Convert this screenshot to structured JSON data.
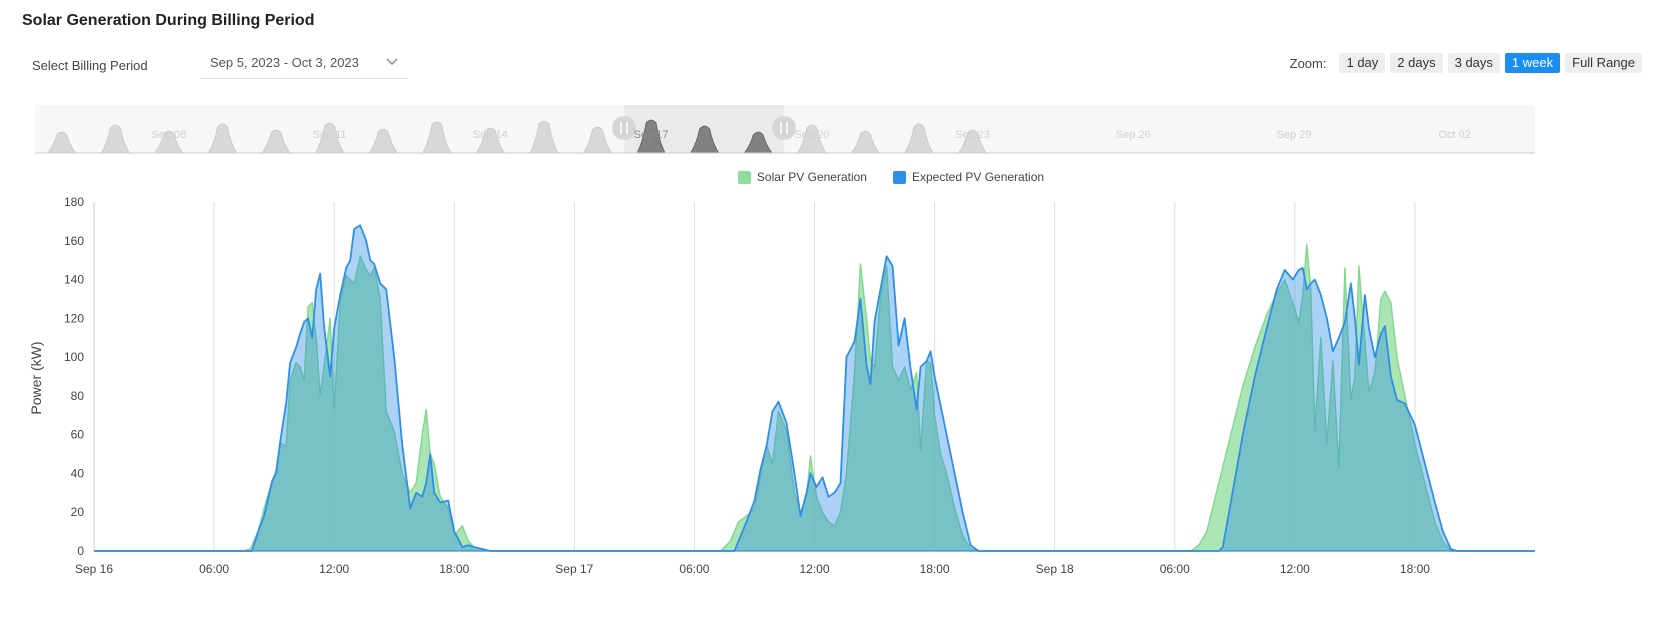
{
  "page": {
    "title": "Solar Generation During Billing Period"
  },
  "billing": {
    "label": "Select Billing Period",
    "selected": "Sep 5, 2023 - Oct 3, 2023"
  },
  "zoom": {
    "label": "Zoom:",
    "options": [
      "1 day",
      "2 days",
      "3 days",
      "1 week",
      "Full Range"
    ],
    "active": "1 week"
  },
  "navigator": {
    "labels": [
      "Sep 08",
      "Sep 11",
      "Sep 14",
      "Sep 17",
      "Sep 20",
      "Sep 23",
      "Sep 26",
      "Sep 29",
      "Oct 02"
    ]
  },
  "colors": {
    "solar": "#8ddc9a",
    "expected": "#2d8fe6",
    "active": "#1a8df2"
  },
  "chart_data": {
    "type": "area",
    "ylabel": "Power (kW)",
    "ylim": [
      0,
      180
    ],
    "yticks": [
      0,
      20,
      40,
      60,
      80,
      100,
      120,
      140,
      160,
      180
    ],
    "xlim": [
      0,
      72
    ],
    "xticks": [
      {
        "h": 0,
        "label": "Sep 16"
      },
      {
        "h": 6,
        "label": "06:00"
      },
      {
        "h": 12,
        "label": "12:00"
      },
      {
        "h": 18,
        "label": "18:00"
      },
      {
        "h": 24,
        "label": "Sep 17"
      },
      {
        "h": 30,
        "label": "06:00"
      },
      {
        "h": 36,
        "label": "12:00"
      },
      {
        "h": 42,
        "label": "18:00"
      },
      {
        "h": 48,
        "label": "Sep 18"
      },
      {
        "h": 54,
        "label": "06:00"
      },
      {
        "h": 60,
        "label": "12:00"
      },
      {
        "h": 66,
        "label": "18:00"
      }
    ],
    "grid": "vertical",
    "legend": "top-center",
    "series": [
      {
        "name": "Solar PV Generation",
        "points": [
          [
            0,
            0
          ],
          [
            7.4,
            0
          ],
          [
            7.8,
            1
          ],
          [
            8.2,
            10
          ],
          [
            8.5,
            22
          ],
          [
            8.9,
            36
          ],
          [
            9.1,
            42
          ],
          [
            9.3,
            56
          ],
          [
            9.6,
            54
          ],
          [
            9.8,
            88
          ],
          [
            10.1,
            97
          ],
          [
            10.3,
            95
          ],
          [
            10.5,
            88
          ],
          [
            10.7,
            126
          ],
          [
            10.9,
            128
          ],
          [
            11.1,
            110
          ],
          [
            11.3,
            80
          ],
          [
            11.5,
            96
          ],
          [
            11.8,
            120
          ],
          [
            12.0,
            73
          ],
          [
            12.3,
            128
          ],
          [
            12.6,
            142
          ],
          [
            12.8,
            140
          ],
          [
            13.0,
            138
          ],
          [
            13.3,
            152
          ],
          [
            13.6,
            145
          ],
          [
            13.8,
            142
          ],
          [
            14.0,
            146
          ],
          [
            14.3,
            130
          ],
          [
            14.6,
            72
          ],
          [
            15.0,
            62
          ],
          [
            15.4,
            40
          ],
          [
            15.8,
            30
          ],
          [
            16.1,
            35
          ],
          [
            16.4,
            60
          ],
          [
            16.6,
            73
          ],
          [
            16.8,
            50
          ],
          [
            17.0,
            45
          ],
          [
            17.3,
            28
          ],
          [
            17.7,
            22
          ],
          [
            18.0,
            8
          ],
          [
            18.4,
            13
          ],
          [
            18.7,
            5
          ],
          [
            19.0,
            2
          ],
          [
            19.4,
            1
          ],
          [
            19.8,
            0
          ],
          [
            31.3,
            0
          ],
          [
            31.8,
            5
          ],
          [
            32.2,
            15
          ],
          [
            32.6,
            18
          ],
          [
            33.0,
            22
          ],
          [
            33.3,
            38
          ],
          [
            33.6,
            55
          ],
          [
            33.9,
            45
          ],
          [
            34.2,
            72
          ],
          [
            34.6,
            62
          ],
          [
            35.0,
            30
          ],
          [
            35.3,
            20
          ],
          [
            35.6,
            28
          ],
          [
            35.8,
            49
          ],
          [
            36.1,
            28
          ],
          [
            36.4,
            20
          ],
          [
            36.7,
            15
          ],
          [
            37.0,
            13
          ],
          [
            37.3,
            20
          ],
          [
            37.6,
            40
          ],
          [
            38.0,
            92
          ],
          [
            38.3,
            148
          ],
          [
            38.6,
            120
          ],
          [
            38.8,
            98
          ],
          [
            39.0,
            95
          ],
          [
            39.3,
            130
          ],
          [
            39.6,
            147
          ],
          [
            39.9,
            95
          ],
          [
            40.2,
            88
          ],
          [
            40.5,
            95
          ],
          [
            40.8,
            83
          ],
          [
            41.1,
            92
          ],
          [
            41.3,
            52
          ],
          [
            41.6,
            98
          ],
          [
            41.8,
            97
          ],
          [
            42.0,
            70
          ],
          [
            42.3,
            50
          ],
          [
            42.6,
            40
          ],
          [
            43.0,
            22
          ],
          [
            43.4,
            8
          ],
          [
            43.8,
            1
          ],
          [
            44.2,
            0
          ],
          [
            54.8,
            0
          ],
          [
            55.2,
            3
          ],
          [
            55.6,
            10
          ],
          [
            56.2,
            35
          ],
          [
            56.8,
            60
          ],
          [
            57.4,
            85
          ],
          [
            58.0,
            105
          ],
          [
            58.6,
            122
          ],
          [
            59.1,
            133
          ],
          [
            59.5,
            140
          ],
          [
            59.9,
            128
          ],
          [
            60.2,
            118
          ],
          [
            60.4,
            132
          ],
          [
            60.6,
            158
          ],
          [
            60.8,
            135
          ],
          [
            61.0,
            62
          ],
          [
            61.3,
            110
          ],
          [
            61.6,
            55
          ],
          [
            61.9,
            98
          ],
          [
            62.2,
            43
          ],
          [
            62.5,
            146
          ],
          [
            62.8,
            78
          ],
          [
            63.0,
            90
          ],
          [
            63.2,
            147
          ],
          [
            63.5,
            108
          ],
          [
            63.7,
            82
          ],
          [
            64.0,
            92
          ],
          [
            64.3,
            130
          ],
          [
            64.5,
            134
          ],
          [
            64.8,
            128
          ],
          [
            65.1,
            100
          ],
          [
            65.5,
            80
          ],
          [
            66.0,
            55
          ],
          [
            66.5,
            35
          ],
          [
            67.0,
            15
          ],
          [
            67.4,
            5
          ],
          [
            67.8,
            0
          ],
          [
            72,
            0
          ]
        ]
      },
      {
        "name": "Expected PV Generation",
        "points": [
          [
            0,
            0
          ],
          [
            7.9,
            0
          ],
          [
            8.2,
            10
          ],
          [
            8.5,
            18
          ],
          [
            8.9,
            36
          ],
          [
            9.1,
            40
          ],
          [
            9.3,
            56
          ],
          [
            9.6,
            76
          ],
          [
            9.8,
            97
          ],
          [
            10.1,
            105
          ],
          [
            10.3,
            112
          ],
          [
            10.5,
            118
          ],
          [
            10.7,
            120
          ],
          [
            10.9,
            110
          ],
          [
            11.1,
            135
          ],
          [
            11.3,
            143
          ],
          [
            11.5,
            115
          ],
          [
            11.8,
            90
          ],
          [
            12.0,
            115
          ],
          [
            12.3,
            132
          ],
          [
            12.6,
            146
          ],
          [
            12.8,
            150
          ],
          [
            13.0,
            166
          ],
          [
            13.3,
            168
          ],
          [
            13.6,
            160
          ],
          [
            13.8,
            150
          ],
          [
            14.0,
            148
          ],
          [
            14.3,
            138
          ],
          [
            14.6,
            135
          ],
          [
            15.0,
            100
          ],
          [
            15.4,
            55
          ],
          [
            15.8,
            22
          ],
          [
            16.1,
            30
          ],
          [
            16.4,
            28
          ],
          [
            16.6,
            35
          ],
          [
            16.8,
            50
          ],
          [
            17.0,
            30
          ],
          [
            17.3,
            25
          ],
          [
            17.7,
            26
          ],
          [
            18.0,
            10
          ],
          [
            18.4,
            2
          ],
          [
            18.7,
            3
          ],
          [
            19.0,
            2
          ],
          [
            19.4,
            1
          ],
          [
            19.8,
            0
          ],
          [
            32.0,
            0
          ],
          [
            32.2,
            5
          ],
          [
            32.6,
            15
          ],
          [
            33.0,
            26
          ],
          [
            33.3,
            42
          ],
          [
            33.6,
            54
          ],
          [
            33.9,
            72
          ],
          [
            34.2,
            77
          ],
          [
            34.6,
            66
          ],
          [
            35.0,
            40
          ],
          [
            35.3,
            18
          ],
          [
            35.6,
            30
          ],
          [
            35.8,
            40
          ],
          [
            36.1,
            33
          ],
          [
            36.4,
            38
          ],
          [
            36.7,
            28
          ],
          [
            37.0,
            30
          ],
          [
            37.3,
            35
          ],
          [
            37.6,
            100
          ],
          [
            38.0,
            108
          ],
          [
            38.3,
            130
          ],
          [
            38.6,
            96
          ],
          [
            38.8,
            86
          ],
          [
            39.0,
            118
          ],
          [
            39.3,
            135
          ],
          [
            39.6,
            152
          ],
          [
            39.9,
            147
          ],
          [
            40.2,
            106
          ],
          [
            40.5,
            120
          ],
          [
            40.8,
            94
          ],
          [
            41.1,
            73
          ],
          [
            41.3,
            95
          ],
          [
            41.6,
            98
          ],
          [
            41.8,
            103
          ],
          [
            42.0,
            90
          ],
          [
            42.3,
            75
          ],
          [
            42.6,
            60
          ],
          [
            43.0,
            40
          ],
          [
            43.4,
            20
          ],
          [
            43.8,
            3
          ],
          [
            44.2,
            0
          ],
          [
            56.2,
            0
          ],
          [
            56.4,
            2
          ],
          [
            56.8,
            25
          ],
          [
            57.4,
            60
          ],
          [
            58.0,
            90
          ],
          [
            58.6,
            115
          ],
          [
            59.1,
            135
          ],
          [
            59.5,
            145
          ],
          [
            59.9,
            140
          ],
          [
            60.2,
            145
          ],
          [
            60.4,
            146
          ],
          [
            60.6,
            135
          ],
          [
            60.8,
            138
          ],
          [
            61.0,
            140
          ],
          [
            61.3,
            132
          ],
          [
            61.6,
            120
          ],
          [
            61.9,
            103
          ],
          [
            62.2,
            110
          ],
          [
            62.5,
            118
          ],
          [
            62.8,
            138
          ],
          [
            63.0,
            120
          ],
          [
            63.2,
            96
          ],
          [
            63.5,
            132
          ],
          [
            63.7,
            115
          ],
          [
            64.0,
            100
          ],
          [
            64.3,
            112
          ],
          [
            64.5,
            116
          ],
          [
            64.8,
            90
          ],
          [
            65.1,
            78
          ],
          [
            65.5,
            76
          ],
          [
            66.0,
            65
          ],
          [
            66.5,
            45
          ],
          [
            67.0,
            25
          ],
          [
            67.4,
            10
          ],
          [
            67.8,
            1
          ],
          [
            68.1,
            0
          ],
          [
            72,
            0
          ]
        ]
      }
    ]
  }
}
